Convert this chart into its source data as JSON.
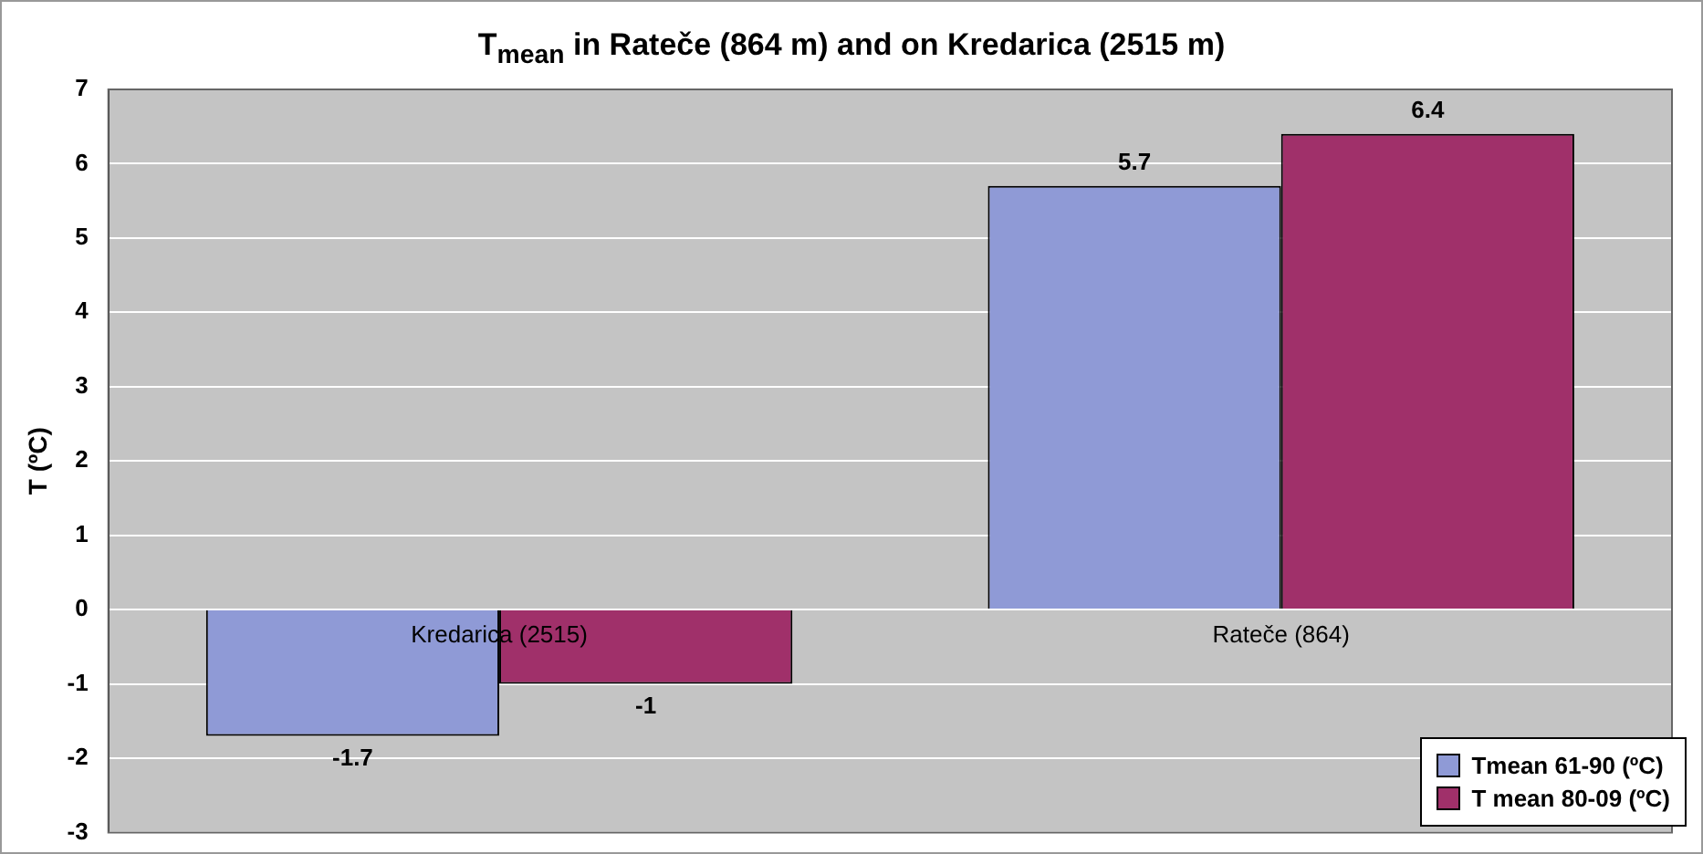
{
  "chart_data": {
    "type": "bar",
    "title": "T$_{mean}$ in Rateče (864 m) and on Kredarica (2515 m)",
    "ylabel": "T (ºC)",
    "categories": [
      "Kredarica (2515)",
      "Rateče (864)"
    ],
    "series": [
      {
        "name": "Tmean 61-90 (ºC)",
        "color": "#8f9ad6",
        "values": [
          -1.7,
          5.7
        ]
      },
      {
        "name": "T mean 80-09 (ºC)",
        "color": "#a0306a",
        "values": [
          -1,
          6.4
        ]
      }
    ],
    "ylim": [
      -3,
      7
    ],
    "yticks": [
      -3,
      -2,
      -1,
      0,
      1,
      2,
      3,
      4,
      5,
      6,
      7
    ],
    "grid": "y",
    "legend": "bottom right",
    "data_labels": true
  }
}
